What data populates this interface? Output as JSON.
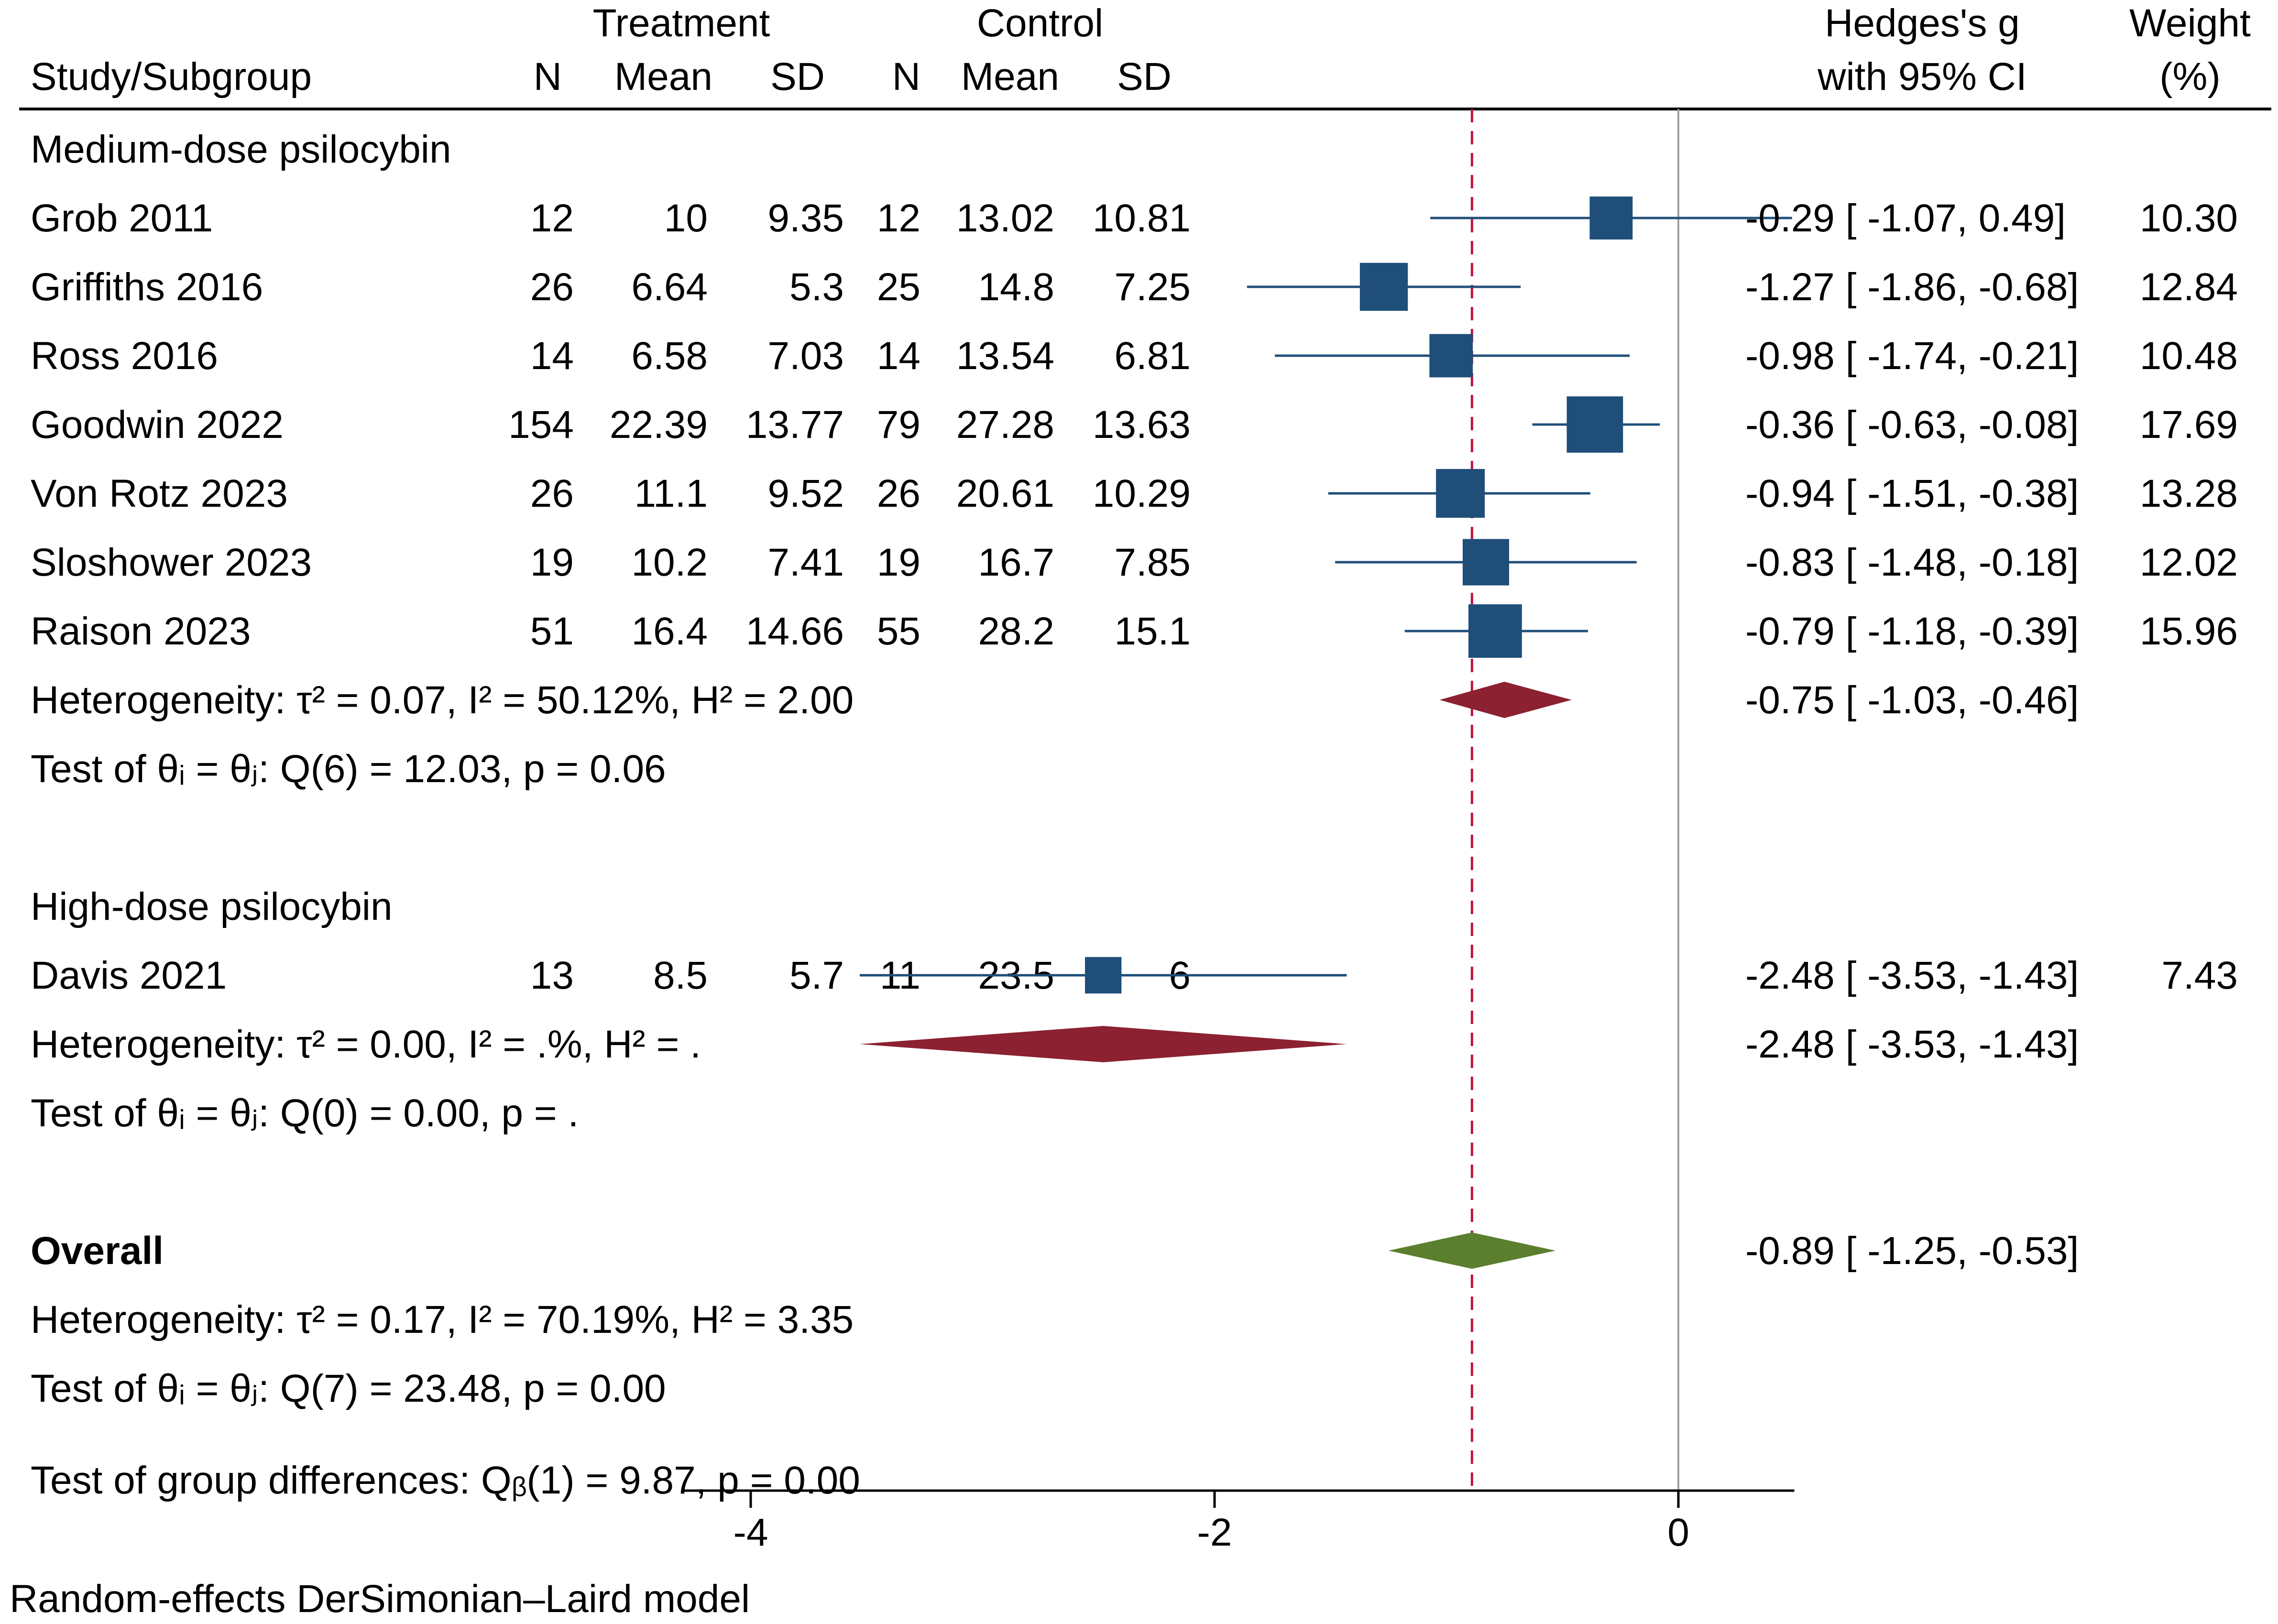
{
  "header": {
    "study_col": "Study/Subgroup",
    "treatment_group": "Treatment",
    "control_group": "Control",
    "n": "N",
    "mean": "Mean",
    "sd": "SD",
    "effect_line1": "Hedges's g",
    "effect_line2": "with 95% CI",
    "weight_line1": "Weight",
    "weight_line2": "(%)"
  },
  "footnote": "Random-effects DerSimonian–Laird model",
  "chart_data": {
    "type": "forest",
    "xlim": [
      -4.3,
      0.5
    ],
    "xticks": [
      -4,
      -2,
      0
    ],
    "xtick_labels": [
      "-4",
      "-2",
      "0"
    ],
    "null_line": 0,
    "overall_line": -0.89,
    "colors": {
      "study": "#1f4e79",
      "subgroup_diamond": "#8b2131",
      "overall_diamond": "#5b7f2e",
      "overall_line": "#c0143c",
      "null_line": "#a0a0a0"
    },
    "rows": [
      {
        "kind": "group",
        "label": "Medium-dose psilocybin"
      },
      {
        "kind": "study",
        "label": "Grob  2011",
        "t_n": "12",
        "t_mean": "10",
        "t_sd": "9.35",
        "c_n": "12",
        "c_mean": "13.02",
        "c_sd": "10.81",
        "g": -0.29,
        "lo": -1.07,
        "hi": 0.49,
        "ci_text": "-0.29 [ -1.07,   0.49]",
        "weight": "10.30",
        "w": 10.3
      },
      {
        "kind": "study",
        "label": "Griffiths 2016",
        "t_n": "26",
        "t_mean": "6.64",
        "t_sd": "5.3",
        "c_n": "25",
        "c_mean": "14.8",
        "c_sd": "7.25",
        "g": -1.27,
        "lo": -1.86,
        "hi": -0.68,
        "ci_text": "-1.27 [ -1.86,  -0.68]",
        "weight": "12.84",
        "w": 12.84
      },
      {
        "kind": "study",
        "label": "Ross  2016",
        "t_n": "14",
        "t_mean": "6.58",
        "t_sd": "7.03",
        "c_n": "14",
        "c_mean": "13.54",
        "c_sd": "6.81",
        "g": -0.98,
        "lo": -1.74,
        "hi": -0.21,
        "ci_text": "-0.98 [ -1.74,  -0.21]",
        "weight": "10.48",
        "w": 10.48
      },
      {
        "kind": "study",
        "label": "Goodwin  2022",
        "t_n": "154",
        "t_mean": "22.39",
        "t_sd": "13.77",
        "c_n": "79",
        "c_mean": "27.28",
        "c_sd": "13.63",
        "g": -0.36,
        "lo": -0.63,
        "hi": -0.08,
        "ci_text": "-0.36 [ -0.63,  -0.08]",
        "weight": "17.69",
        "w": 17.69
      },
      {
        "kind": "study",
        "label": "Von Rotz 2023",
        "t_n": "26",
        "t_mean": "11.1",
        "t_sd": "9.52",
        "c_n": "26",
        "c_mean": "20.61",
        "c_sd": "10.29",
        "g": -0.94,
        "lo": -1.51,
        "hi": -0.38,
        "ci_text": "-0.94 [ -1.51,  -0.38]",
        "weight": "13.28",
        "w": 13.28
      },
      {
        "kind": "study",
        "label": "Sloshower 2023",
        "t_n": "19",
        "t_mean": "10.2",
        "t_sd": "7.41",
        "c_n": "19",
        "c_mean": "16.7",
        "c_sd": "7.85",
        "g": -0.83,
        "lo": -1.48,
        "hi": -0.18,
        "ci_text": "-0.83 [ -1.48,  -0.18]",
        "weight": "12.02",
        "w": 12.02
      },
      {
        "kind": "study",
        "label": "Raison  2023",
        "t_n": "51",
        "t_mean": "16.4",
        "t_sd": "14.66",
        "c_n": "55",
        "c_mean": "28.2",
        "c_sd": "15.1",
        "g": -0.79,
        "lo": -1.18,
        "hi": -0.39,
        "ci_text": "-0.79 [ -1.18,  -0.39]",
        "weight": "15.96",
        "w": 15.96
      },
      {
        "kind": "subgroup",
        "label": "Heterogeneity: τ² = 0.07, I² = 50.12%, H² = 2.00",
        "g": -0.75,
        "lo": -1.03,
        "hi": -0.46,
        "ci_text": "-0.75 [ -1.03,  -0.46]"
      },
      {
        "kind": "text",
        "label": "Test of θᵢ = θⱼ: Q(6) = 12.03, p = 0.06"
      },
      {
        "kind": "blank"
      },
      {
        "kind": "group",
        "label": "High-dose psilocybin"
      },
      {
        "kind": "study",
        "label": "Davis  2021",
        "t_n": "13",
        "t_mean": "8.5",
        "t_sd": "5.7",
        "c_n": "11",
        "c_mean": "23.5",
        "c_sd": "6",
        "g": -2.48,
        "lo": -3.53,
        "hi": -1.43,
        "ci_text": "-2.48 [ -3.53,  -1.43]",
        "weight": "7.43",
        "w": 7.43
      },
      {
        "kind": "subgroup",
        "label": "Heterogeneity: τ² = 0.00, I² = .%, H² = .",
        "g": -2.48,
        "lo": -3.53,
        "hi": -1.43,
        "ci_text": "-2.48 [ -3.53,  -1.43]"
      },
      {
        "kind": "text",
        "label": "Test of θᵢ = θⱼ: Q(0) = 0.00, p = ."
      },
      {
        "kind": "blank"
      },
      {
        "kind": "overall",
        "label": "Overall",
        "g": -0.89,
        "lo": -1.25,
        "hi": -0.53,
        "ci_text": "-0.89 [ -1.25,  -0.53]"
      },
      {
        "kind": "text",
        "label": "Heterogeneity: τ² = 0.17, I² = 70.19%, H² = 3.35"
      },
      {
        "kind": "text",
        "label": "Test of θᵢ = θⱼ: Q(7) = 23.48, p = 0.00"
      },
      {
        "kind": "text",
        "label": "Test of group differences: Qᵦ(1) = 9.87, p = 0.00",
        "gap": true
      }
    ]
  }
}
